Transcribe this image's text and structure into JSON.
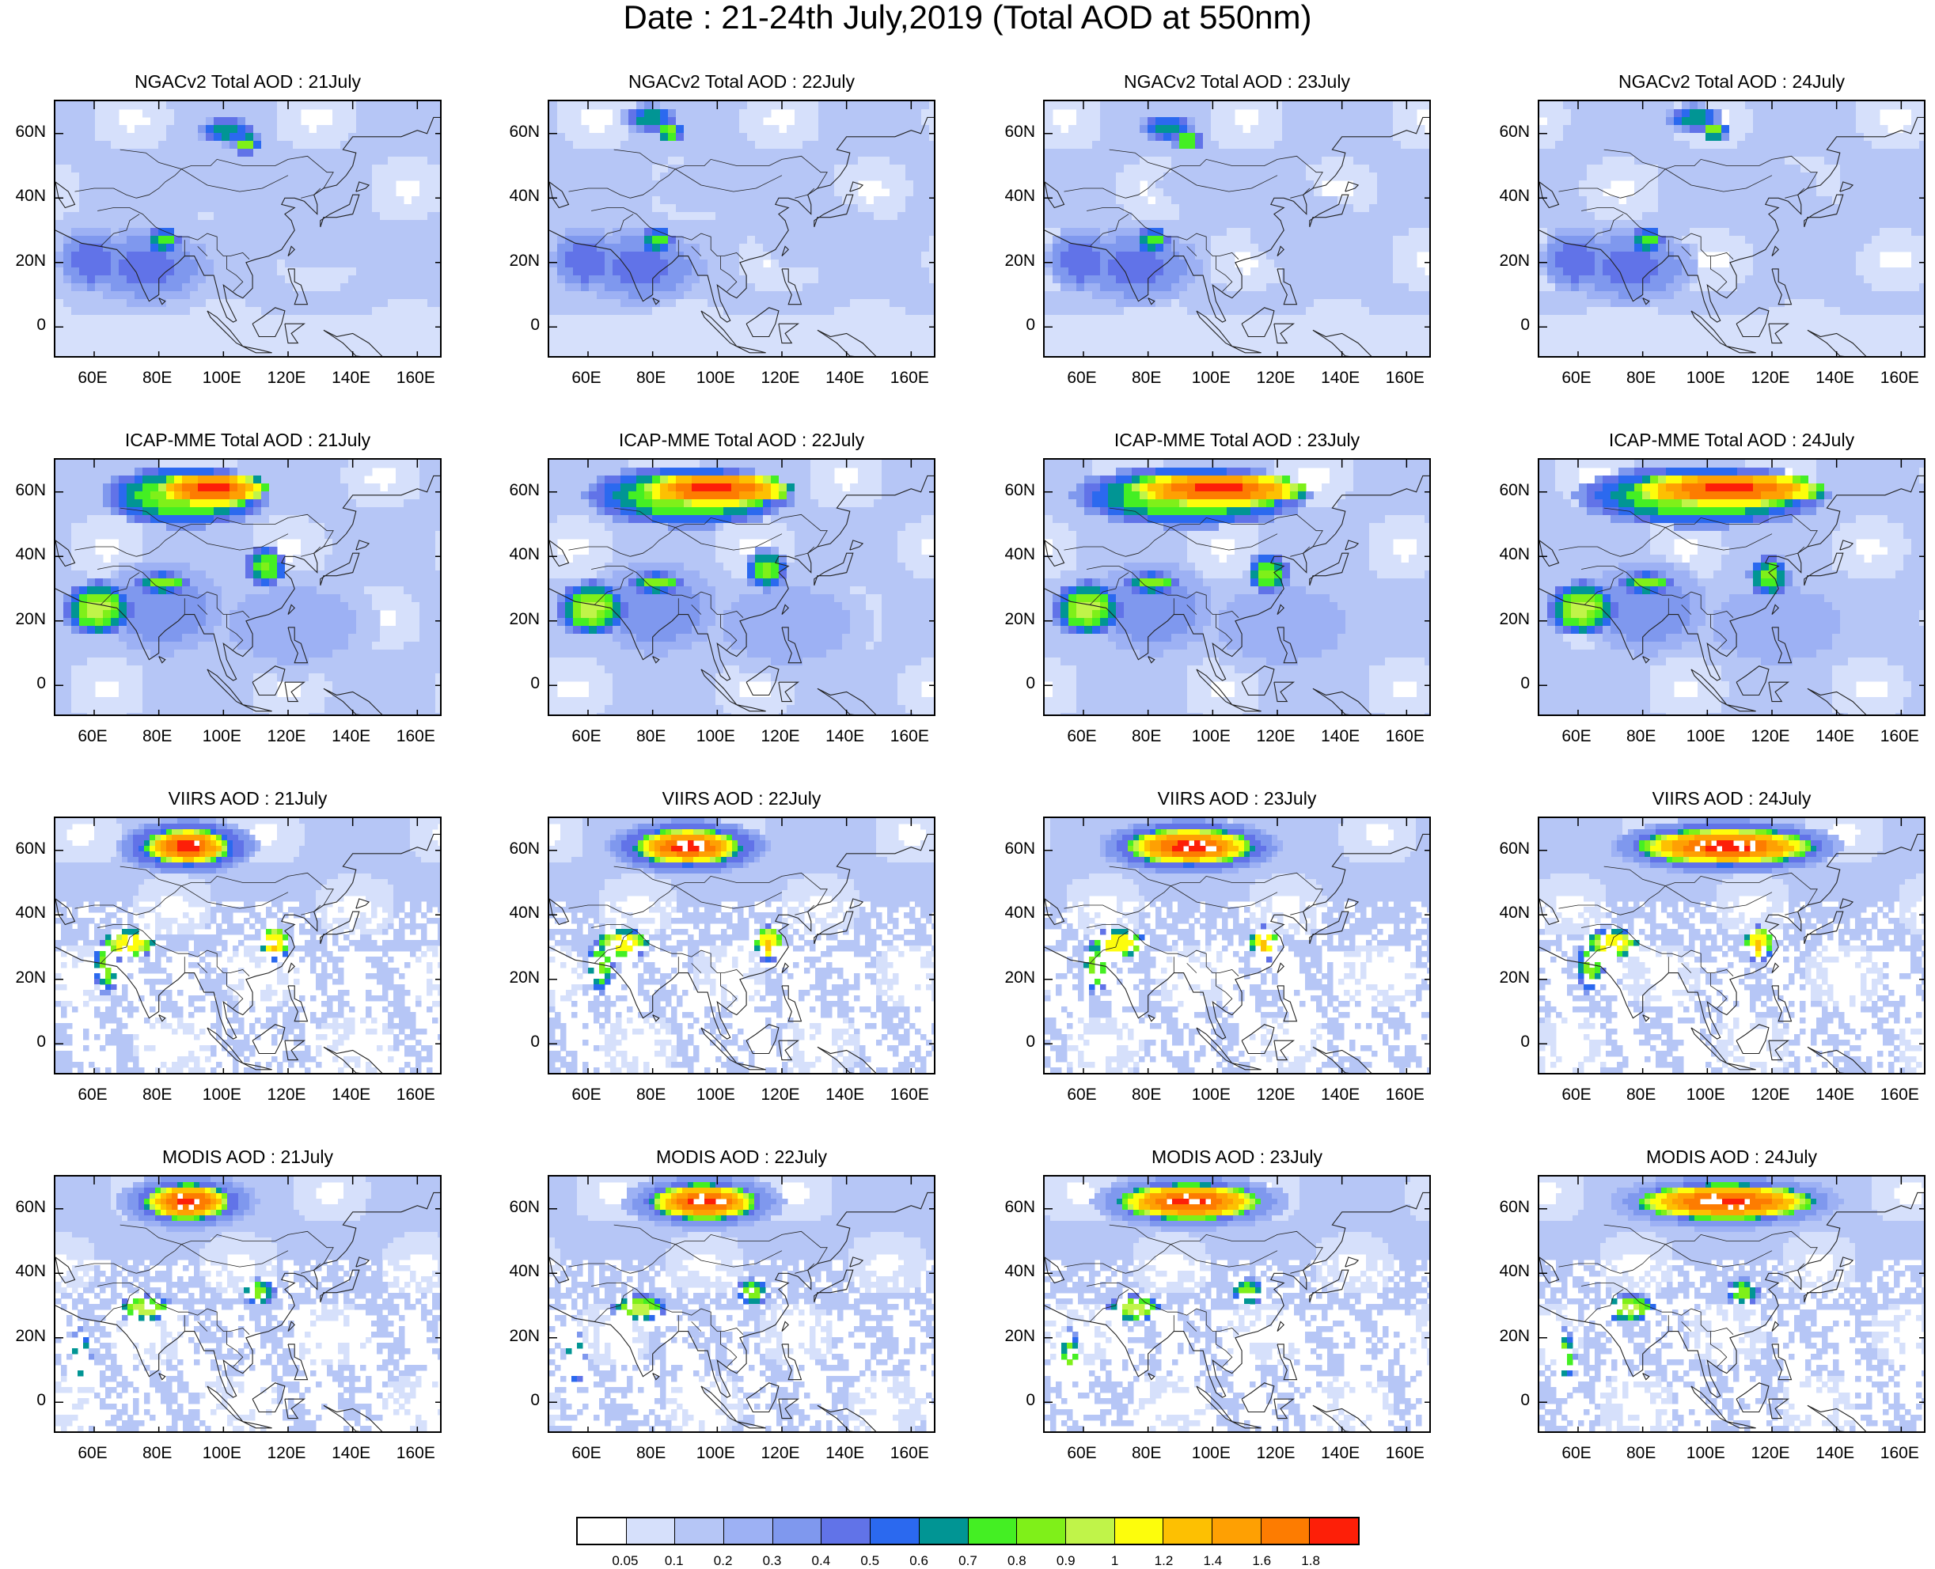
{
  "title": "Date : 21-24th July,2019 (Total AOD at 550nm)",
  "lat_ticks": [
    "60N",
    "40N",
    "20N",
    "0"
  ],
  "lon_ticks": [
    "60E",
    "80E",
    "100E",
    "120E",
    "140E",
    "160E"
  ],
  "panels": [
    {
      "row": 0,
      "col": 0,
      "title": "NGACv2 Total AOD : 21July"
    },
    {
      "row": 0,
      "col": 1,
      "title": "NGACv2 Total AOD : 22July"
    },
    {
      "row": 0,
      "col": 2,
      "title": "NGACv2 Total AOD : 23July"
    },
    {
      "row": 0,
      "col": 3,
      "title": "NGACv2 Total AOD : 24July"
    },
    {
      "row": 1,
      "col": 0,
      "title": "ICAP-MME Total AOD : 21July"
    },
    {
      "row": 1,
      "col": 1,
      "title": "ICAP-MME Total AOD : 22July"
    },
    {
      "row": 1,
      "col": 2,
      "title": "ICAP-MME Total AOD : 23July"
    },
    {
      "row": 1,
      "col": 3,
      "title": "ICAP-MME Total AOD : 24July"
    },
    {
      "row": 2,
      "col": 0,
      "title": "VIIRS AOD : 21July"
    },
    {
      "row": 2,
      "col": 1,
      "title": "VIIRS AOD : 22July"
    },
    {
      "row": 2,
      "col": 2,
      "title": "VIIRS AOD : 23July"
    },
    {
      "row": 2,
      "col": 3,
      "title": "VIIRS AOD : 24July"
    },
    {
      "row": 3,
      "col": 0,
      "title": "MODIS AOD : 21July"
    },
    {
      "row": 3,
      "col": 1,
      "title": "MODIS AOD : 22July"
    },
    {
      "row": 3,
      "col": 2,
      "title": "MODIS AOD : 23July"
    },
    {
      "row": 3,
      "col": 3,
      "title": "MODIS AOD : 24July"
    }
  ],
  "colorbar": {
    "colors": [
      "#ffffff",
      "#d6e0fb",
      "#b6c6f6",
      "#9db1f4",
      "#7f98ee",
      "#6173e8",
      "#2b69ef",
      "#019594",
      "#44ef23",
      "#7ff019",
      "#c0f449",
      "#fdfd0c",
      "#fdc002",
      "#fea003",
      "#fd7c01",
      "#fd1f08"
    ],
    "labels": [
      "0.05",
      "0.1",
      "0.2",
      "0.3",
      "0.4",
      "0.5",
      "0.6",
      "0.7",
      "0.8",
      "0.9",
      "1",
      "1.2",
      "1.4",
      "1.6",
      "1.8"
    ]
  }
}
